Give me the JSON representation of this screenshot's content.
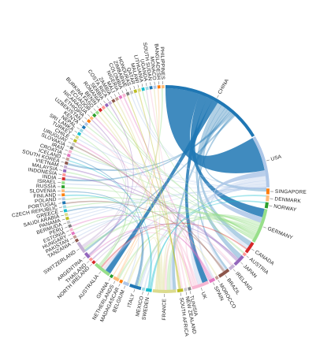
{
  "chart_data": {
    "type": "chord",
    "title": "",
    "nodes": [
      {
        "name": "CHINA",
        "weight": 18,
        "color": "#1f77b4"
      },
      {
        "name": "USA",
        "weight": 9,
        "color": "#aec7e8"
      },
      {
        "name": "SINGAPORE",
        "weight": 1,
        "color": "#ff7f0e"
      },
      {
        "name": "DENMARK",
        "weight": 1,
        "color": "#ffbb78"
      },
      {
        "name": "NORWAY",
        "weight": 1,
        "color": "#2ca02c"
      },
      {
        "name": "GERMANY",
        "weight": 6,
        "color": "#98df8a"
      },
      {
        "name": "CANADA",
        "weight": 2,
        "color": "#d62728"
      },
      {
        "name": "AUSTRIA",
        "weight": 0.5,
        "color": "#ff9896"
      },
      {
        "name": "JAPAN",
        "weight": 2,
        "color": "#9467bd"
      },
      {
        "name": "IRELAND",
        "weight": 1,
        "color": "#c5b0d5"
      },
      {
        "name": "BRAZIL",
        "weight": 2,
        "color": "#8c564b"
      },
      {
        "name": "MOROCCO",
        "weight": 0.5,
        "color": "#c49c94"
      },
      {
        "name": "SPAIN",
        "weight": 1,
        "color": "#e377c2"
      },
      {
        "name": "UK",
        "weight": 3,
        "color": "#f7b6d2"
      },
      {
        "name": "TUNISIA",
        "weight": 0.5,
        "color": "#7f7f7f"
      },
      {
        "name": "NEW ZEALAND",
        "weight": 0.5,
        "color": "#c7c7c7"
      },
      {
        "name": "SOUTH AFRICA",
        "weight": 1,
        "color": "#bcbd22"
      },
      {
        "name": "FRANCE",
        "weight": 4,
        "color": "#dbdb8d"
      },
      {
        "name": "SWEDEN",
        "weight": 1,
        "color": "#17becf"
      },
      {
        "name": "MEXICO",
        "weight": 0.5,
        "color": "#9edae5"
      },
      {
        "name": "ITALY",
        "weight": 2,
        "color": "#1f77b4"
      },
      {
        "name": "BELGIUM",
        "weight": 1,
        "color": "#aec7e8"
      },
      {
        "name": "MADAGASCAR",
        "weight": 0.5,
        "color": "#ff7f0e"
      },
      {
        "name": "NETHERLANDS",
        "weight": 1,
        "color": "#ffbb78"
      },
      {
        "name": "GHANA",
        "weight": 0.5,
        "color": "#2ca02c"
      },
      {
        "name": "AUSTRALIA",
        "weight": 3,
        "color": "#98df8a"
      },
      {
        "name": "NORTH IRELAND",
        "weight": 0.5,
        "color": "#d62728"
      },
      {
        "name": "THAILAND",
        "weight": 0.5,
        "color": "#ff9896"
      },
      {
        "name": "ARGENTINA",
        "weight": 1,
        "color": "#9467bd"
      },
      {
        "name": "SWITZERLAND",
        "weight": 2,
        "color": "#c5b0d5"
      },
      {
        "name": "TANZANIA",
        "weight": 0.5,
        "color": "#8c564b"
      },
      {
        "name": "PAKISTAN",
        "weight": 0.5,
        "color": "#c49c94"
      },
      {
        "name": "HUNGARY",
        "weight": 0.5,
        "color": "#e377c2"
      },
      {
        "name": "ESTONIA",
        "weight": 0.5,
        "color": "#f7b6d2"
      },
      {
        "name": "PERU",
        "weight": 0.5,
        "color": "#7f7f7f"
      },
      {
        "name": "BERMUDA",
        "weight": 0.5,
        "color": "#c7c7c7"
      },
      {
        "name": "PANAMA",
        "weight": 0.5,
        "color": "#bcbd22"
      },
      {
        "name": "SAUDI ARABIA",
        "weight": 0.5,
        "color": "#dbdb8d"
      },
      {
        "name": "GREECE",
        "weight": 0.5,
        "color": "#17becf"
      },
      {
        "name": "CZECH REPUBLIC",
        "weight": 0.5,
        "color": "#9edae5"
      },
      {
        "name": "PORTUGAL",
        "weight": 0.5,
        "color": "#1f77b4"
      },
      {
        "name": "POLAND",
        "weight": 0.5,
        "color": "#aec7e8"
      },
      {
        "name": "FINLAND",
        "weight": 0.5,
        "color": "#ff7f0e"
      },
      {
        "name": "SLOVENIA",
        "weight": 0.5,
        "color": "#ffbb78"
      },
      {
        "name": "RUSSIA",
        "weight": 0.5,
        "color": "#2ca02c"
      },
      {
        "name": "ISRAEL",
        "weight": 0.5,
        "color": "#98df8a"
      },
      {
        "name": "INDIA",
        "weight": 0.5,
        "color": "#d62728"
      },
      {
        "name": "INDONESIA",
        "weight": 0.5,
        "color": "#ff9896"
      },
      {
        "name": "MALAYSIA",
        "weight": 0.5,
        "color": "#9467bd"
      },
      {
        "name": "VIETNAM",
        "weight": 0.5,
        "color": "#c5b0d5"
      },
      {
        "name": "SOUTH KOREA",
        "weight": 0.5,
        "color": "#8c564b"
      },
      {
        "name": "ICELAND",
        "weight": 0.5,
        "color": "#c49c94"
      },
      {
        "name": "CROATIA",
        "weight": 0.5,
        "color": "#e377c2"
      },
      {
        "name": "IRAN",
        "weight": 0.5,
        "color": "#f7b6d2"
      },
      {
        "name": "SLOVAKIA",
        "weight": 0.5,
        "color": "#7f7f7f"
      },
      {
        "name": "URUGUAY",
        "weight": 0.5,
        "color": "#c7c7c7"
      },
      {
        "name": "CHILE",
        "weight": 0.5,
        "color": "#bcbd22"
      },
      {
        "name": "TURKEY",
        "weight": 0.5,
        "color": "#dbdb8d"
      },
      {
        "name": "SRI LANKA",
        "weight": 0.5,
        "color": "#17becf"
      },
      {
        "name": "NEPAL",
        "weight": 0.5,
        "color": "#9edae5"
      },
      {
        "name": "KENYA",
        "weight": 0.5,
        "color": "#1f77b4"
      },
      {
        "name": "UZBEKISTAN",
        "weight": 0.5,
        "color": "#aec7e8"
      },
      {
        "name": "ETHIOPIA",
        "weight": 0.5,
        "color": "#ff7f0e"
      },
      {
        "name": "NICARAGUA",
        "weight": 0.5,
        "color": "#ffbb78"
      },
      {
        "name": "ECUADOR",
        "weight": 0.5,
        "color": "#2ca02c"
      },
      {
        "name": "BURKINA FASO",
        "weight": 0.5,
        "color": "#98df8a"
      },
      {
        "name": "BENIN",
        "weight": 0.5,
        "color": "#d62728"
      },
      {
        "name": "ROMANIA",
        "weight": 0.5,
        "color": "#ff9896"
      },
      {
        "name": "SERBIA",
        "weight": 0.5,
        "color": "#9467bd"
      },
      {
        "name": "COSTA RICA",
        "weight": 0.5,
        "color": "#c5b0d5"
      },
      {
        "name": "ZAMBIA",
        "weight": 0.5,
        "color": "#8c564b"
      },
      {
        "name": "MALI",
        "weight": 0.5,
        "color": "#c49c94"
      },
      {
        "name": "NIGERIA",
        "weight": 0.5,
        "color": "#e377c2"
      },
      {
        "name": "COLOMBIA",
        "weight": 0.5,
        "color": "#f7b6d2"
      },
      {
        "name": "ZIMBABWE",
        "weight": 0.5,
        "color": "#7f7f7f"
      },
      {
        "name": "HONDURAS",
        "weight": 0.5,
        "color": "#c7c7c7"
      },
      {
        "name": "QATAR",
        "weight": 0.5,
        "color": "#bcbd22"
      },
      {
        "name": "MALAWI",
        "weight": 0.5,
        "color": "#dbdb8d"
      },
      {
        "name": "LITHUANIA",
        "weight": 0.5,
        "color": "#17becf"
      },
      {
        "name": "UGANDA",
        "weight": 0.5,
        "color": "#9edae5"
      },
      {
        "name": "SOUTH SUDAN",
        "weight": 0.5,
        "color": "#1f77b4"
      },
      {
        "name": "MONACO",
        "weight": 0.5,
        "color": "#aec7e8"
      },
      {
        "name": "BANGLADESH",
        "weight": 0.5,
        "color": "#ff7f0e"
      },
      {
        "name": "PHILIPPINES",
        "weight": 0.5,
        "color": "#ffbb78"
      }
    ],
    "links": [
      {
        "source": "CHINA",
        "target": "USA",
        "value": 6
      },
      {
        "source": "CHINA",
        "target": "GERMANY",
        "value": 1.5
      },
      {
        "source": "CHINA",
        "target": "UK",
        "value": 1
      },
      {
        "source": "CHINA",
        "target": "AUSTRALIA",
        "value": 1
      },
      {
        "source": "CHINA",
        "target": "JAPAN",
        "value": 0.8
      },
      {
        "source": "CHINA",
        "target": "CANADA",
        "value": 0.8
      },
      {
        "source": "CHINA",
        "target": "SINGAPORE",
        "value": 0.5
      },
      {
        "source": "CHINA",
        "target": "FRANCE",
        "value": 0.5
      },
      {
        "source": "CHINA",
        "target": "INDIA",
        "value": 0.3
      },
      {
        "source": "CHINA",
        "target": "SOUTH KOREA",
        "value": 0.3
      },
      {
        "source": "CHINA",
        "target": "BRAZIL",
        "value": 0.3
      },
      {
        "source": "CHINA",
        "target": "SWITZERLAND",
        "value": 0.3
      },
      {
        "source": "USA",
        "target": "GERMANY",
        "value": 1
      },
      {
        "source": "USA",
        "target": "UK",
        "value": 0.8
      },
      {
        "source": "USA",
        "target": "CANADA",
        "value": 0.6
      },
      {
        "source": "USA",
        "target": "ITALY",
        "value": 0.4
      },
      {
        "source": "USA",
        "target": "FRANCE",
        "value": 0.5
      },
      {
        "source": "USA",
        "target": "AUSTRALIA",
        "value": 0.4
      },
      {
        "source": "USA",
        "target": "BRAZIL",
        "value": 0.3
      },
      {
        "source": "USA",
        "target": "SPAIN",
        "value": 0.3
      },
      {
        "source": "USA",
        "target": "MEXICO",
        "value": 0.2
      },
      {
        "source": "USA",
        "target": "ISRAEL",
        "value": 0.2
      },
      {
        "source": "GERMANY",
        "target": "FRANCE",
        "value": 0.6
      },
      {
        "source": "GERMANY",
        "target": "SWITZERLAND",
        "value": 0.4
      },
      {
        "source": "GERMANY",
        "target": "AUSTRIA",
        "value": 0.3
      },
      {
        "source": "GERMANY",
        "target": "NETHERLANDS",
        "value": 0.3
      },
      {
        "source": "GERMANY",
        "target": "ITALY",
        "value": 0.3
      },
      {
        "source": "GERMANY",
        "target": "POLAND",
        "value": 0.2
      },
      {
        "source": "UK",
        "target": "FRANCE",
        "value": 0.4
      },
      {
        "source": "UK",
        "target": "IRELAND",
        "value": 0.3
      },
      {
        "source": "UK",
        "target": "AUSTRALIA",
        "value": 0.4
      },
      {
        "source": "UK",
        "target": "NEW ZEALAND",
        "value": 0.2
      },
      {
        "source": "UK",
        "target": "SOUTH AFRICA",
        "value": 0.3
      },
      {
        "source": "UK",
        "target": "NIGERIA",
        "value": 0.2
      },
      {
        "source": "UK",
        "target": "KENYA",
        "value": 0.2
      },
      {
        "source": "FRANCE",
        "target": "MOROCCO",
        "value": 0.2
      },
      {
        "source": "FRANCE",
        "target": "TUNISIA",
        "value": 0.2
      },
      {
        "source": "FRANCE",
        "target": "BELGIUM",
        "value": 0.3
      },
      {
        "source": "FRANCE",
        "target": "BURKINA FASO",
        "value": 0.2
      },
      {
        "source": "FRANCE",
        "target": "BENIN",
        "value": 0.2
      },
      {
        "source": "FRANCE",
        "target": "MALI",
        "value": 0.2
      },
      {
        "source": "FRANCE",
        "target": "MADAGASCAR",
        "value": 0.2
      },
      {
        "source": "SPAIN",
        "target": "ARGENTINA",
        "value": 0.2
      },
      {
        "source": "SPAIN",
        "target": "PERU",
        "value": 0.2
      },
      {
        "source": "SPAIN",
        "target": "COLOMBIA",
        "value": 0.2
      },
      {
        "source": "SPAIN",
        "target": "ECUADOR",
        "value": 0.2
      },
      {
        "source": "SPAIN",
        "target": "CHILE",
        "value": 0.2
      },
      {
        "source": "BRAZIL",
        "target": "PORTUGAL",
        "value": 0.2
      },
      {
        "source": "BRAZIL",
        "target": "URUGUAY",
        "value": 0.2
      },
      {
        "source": "CANADA",
        "target": "AUSTRALIA",
        "value": 0.2
      },
      {
        "source": "SWEDEN",
        "target": "DENMARK",
        "value": 0.2
      },
      {
        "source": "SWEDEN",
        "target": "NORWAY",
        "value": 0.2
      },
      {
        "source": "SWEDEN",
        "target": "FINLAND",
        "value": 0.2
      },
      {
        "source": "SWEDEN",
        "target": "ICELAND",
        "value": 0.15
      },
      {
        "source": "JAPAN",
        "target": "THAILAND",
        "value": 0.2
      },
      {
        "source": "JAPAN",
        "target": "VIETNAM",
        "value": 0.2
      },
      {
        "source": "JAPAN",
        "target": "INDONESIA",
        "value": 0.2
      },
      {
        "source": "AUSTRALIA",
        "target": "MALAYSIA",
        "value": 0.2
      },
      {
        "source": "AUSTRALIA",
        "target": "PHILIPPINES",
        "value": 0.2
      },
      {
        "source": "AUSTRALIA",
        "target": "SRI LANKA",
        "value": 0.15
      },
      {
        "source": "SWITZERLAND",
        "target": "TANZANIA",
        "value": 0.2
      },
      {
        "source": "SWITZERLAND",
        "target": "ETHIOPIA",
        "value": 0.2
      },
      {
        "source": "SWITZERLAND",
        "target": "UGANDA",
        "value": 0.15
      },
      {
        "source": "ITALY",
        "target": "GREECE",
        "value": 0.2
      },
      {
        "source": "ITALY",
        "target": "CROATIA",
        "value": 0.15
      },
      {
        "source": "ITALY",
        "target": "SLOVENIA",
        "value": 0.15
      },
      {
        "source": "NETHERLANDS",
        "target": "GHANA",
        "value": 0.15
      },
      {
        "source": "NETHERLANDS",
        "target": "BANGLADESH",
        "value": 0.15
      },
      {
        "source": "BELGIUM",
        "target": "HUNGARY",
        "value": 0.15
      },
      {
        "source": "ARGENTINA",
        "target": "COSTA RICA",
        "value": 0.15
      },
      {
        "source": "ARGENTINA",
        "target": "NICARAGUA",
        "value": 0.15
      },
      {
        "source": "SOUTH AFRICA",
        "target": "ZAMBIA",
        "value": 0.15
      },
      {
        "source": "SOUTH AFRICA",
        "target": "ZIMBABWE",
        "value": 0.15
      },
      {
        "source": "SOUTH AFRICA",
        "target": "MALAWI",
        "value": 0.15
      },
      {
        "source": "IRELAND",
        "target": "NORTH IRELAND",
        "value": 0.15
      },
      {
        "source": "USA",
        "target": "HONDURAS",
        "value": 0.15
      },
      {
        "source": "USA",
        "target": "PANAMA",
        "value": 0.15
      },
      {
        "source": "USA",
        "target": "BERMUDA",
        "value": 0.15
      },
      {
        "source": "USA",
        "target": "QATAR",
        "value": 0.15
      },
      {
        "source": "USA",
        "target": "SAUDI ARABIA",
        "value": 0.15
      },
      {
        "source": "USA",
        "target": "IRAN",
        "value": 0.15
      },
      {
        "source": "USA",
        "target": "TURKEY",
        "value": 0.15
      },
      {
        "source": "USA",
        "target": "PAKISTAN",
        "value": 0.15
      },
      {
        "source": "USA",
        "target": "NEPAL",
        "value": 0.15
      },
      {
        "source": "GERMANY",
        "target": "CZECH REPUBLIC",
        "value": 0.15
      },
      {
        "source": "GERMANY",
        "target": "SLOVAKIA",
        "value": 0.15
      },
      {
        "source": "GERMANY",
        "target": "ROMANIA",
        "value": 0.15
      },
      {
        "source": "GERMANY",
        "target": "SERBIA",
        "value": 0.15
      },
      {
        "source": "GERMANY",
        "target": "RUSSIA",
        "value": 0.15
      },
      {
        "source": "GERMANY",
        "target": "UZBEKISTAN",
        "value": 0.15
      },
      {
        "source": "GERMANY",
        "target": "ESTONIA",
        "value": 0.15
      },
      {
        "source": "GERMANY",
        "target": "LITHUANIA",
        "value": 0.15
      },
      {
        "source": "UK",
        "target": "SOUTH SUDAN",
        "value": 0.15
      },
      {
        "source": "FRANCE",
        "target": "MONACO",
        "value": 0.15
      }
    ]
  }
}
